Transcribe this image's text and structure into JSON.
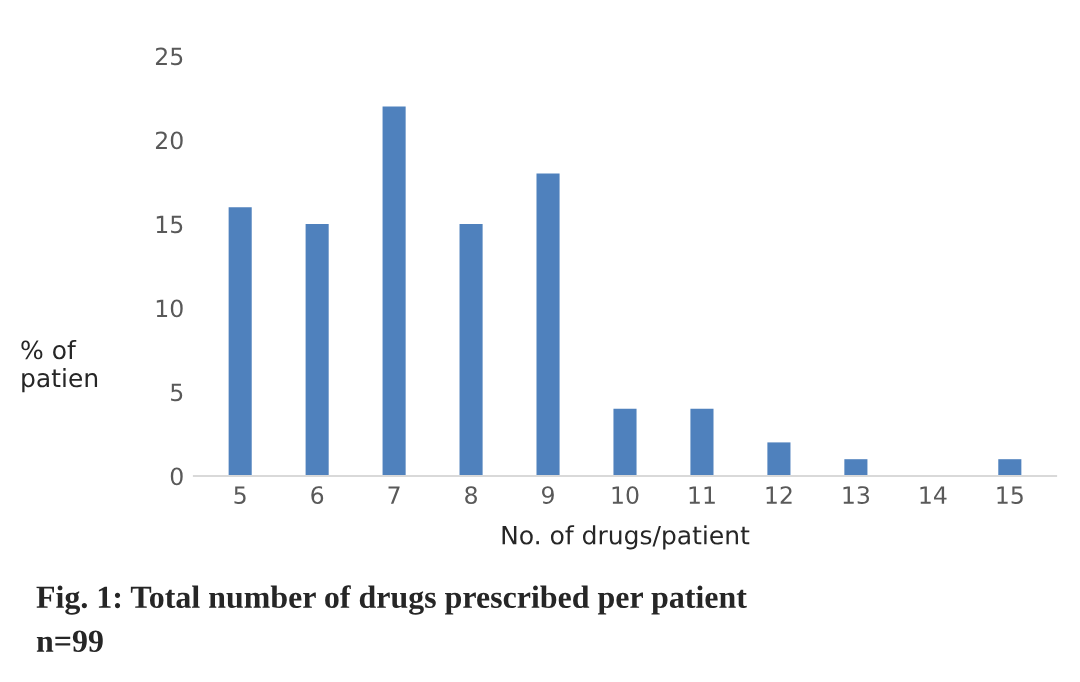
{
  "chart_data": {
    "type": "bar",
    "title": "Fig. 1: Total number of drugs prescribed per patient",
    "subtitle": "n=99",
    "xlabel": "No. of drugs/patient",
    "ylabel": "% of\npatien",
    "categories": [
      "5",
      "6",
      "7",
      "8",
      "9",
      "10",
      "11",
      "12",
      "13",
      "14",
      "15"
    ],
    "values": [
      16,
      15,
      22,
      15,
      18,
      4,
      4,
      2,
      1,
      0,
      1
    ],
    "color": "#4f81bd",
    "ylim": [
      0,
      25
    ],
    "yticks": [
      0,
      5,
      10,
      15,
      20,
      25
    ],
    "grid": false,
    "legend": false
  }
}
